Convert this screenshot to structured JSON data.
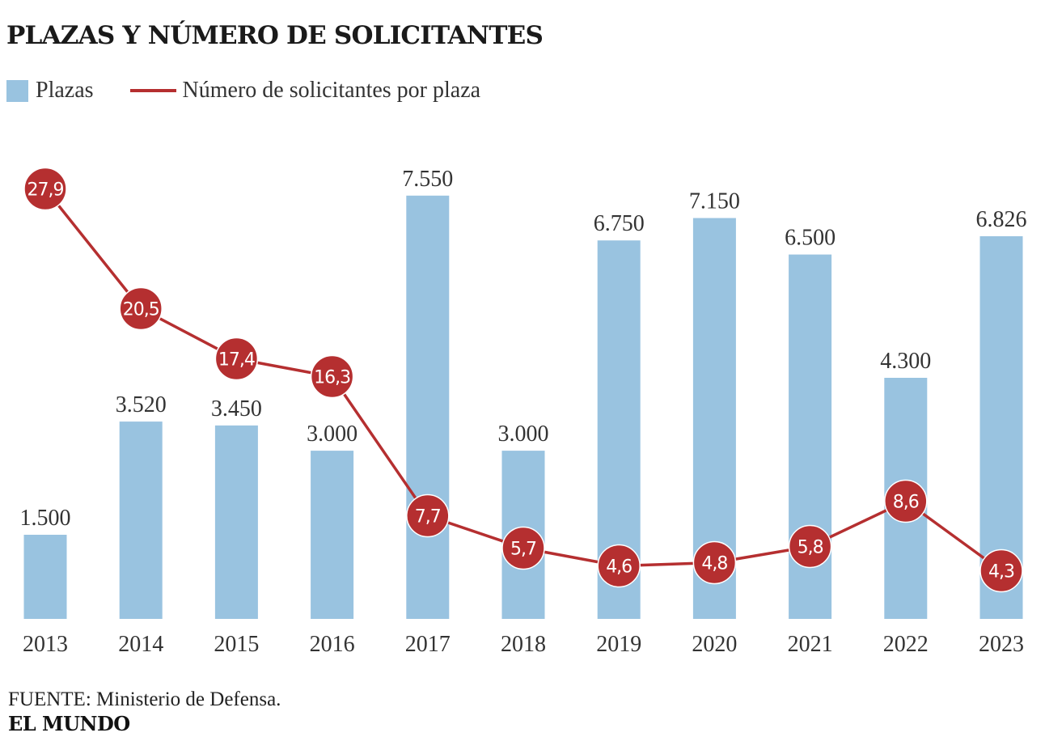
{
  "chart_data": {
    "type": "bar+line",
    "title": "PLAZAS Y NÚMERO DE SOLICITANTES",
    "categories": [
      "2013",
      "2014",
      "2015",
      "2016",
      "2017",
      "2018",
      "2019",
      "2020",
      "2021",
      "2022",
      "2023"
    ],
    "series": [
      {
        "name": "Plazas",
        "type": "bar",
        "color": "#99c3e0",
        "values": [
          1500,
          3520,
          3450,
          3000,
          7550,
          3000,
          6750,
          7150,
          6500,
          4300,
          6826
        ],
        "labels": [
          "1.500",
          "3.520",
          "3.450",
          "3.000",
          "7.550",
          "3.000",
          "6.750",
          "7.150",
          "6.500",
          "4.300",
          "6.826"
        ]
      },
      {
        "name": "Número de solicitantes por plaza",
        "type": "line",
        "color": "#b52f30",
        "values": [
          27.9,
          20.5,
          17.4,
          16.3,
          7.7,
          5.7,
          4.6,
          4.8,
          5.8,
          8.6,
          4.3
        ],
        "labels": [
          "27,9",
          "20,5",
          "17,4",
          "16,3",
          "7,7",
          "5,7",
          "4,6",
          "4,8",
          "5,8",
          "8,6",
          "4,3"
        ]
      }
    ],
    "legend": "top-left",
    "grid": false
  },
  "legend": {
    "bars_label": "Plazas",
    "line_label": "Número de solicitantes por plaza"
  },
  "source": "FUENTE: Ministerio de Defensa.",
  "brand": "EL MUNDO"
}
